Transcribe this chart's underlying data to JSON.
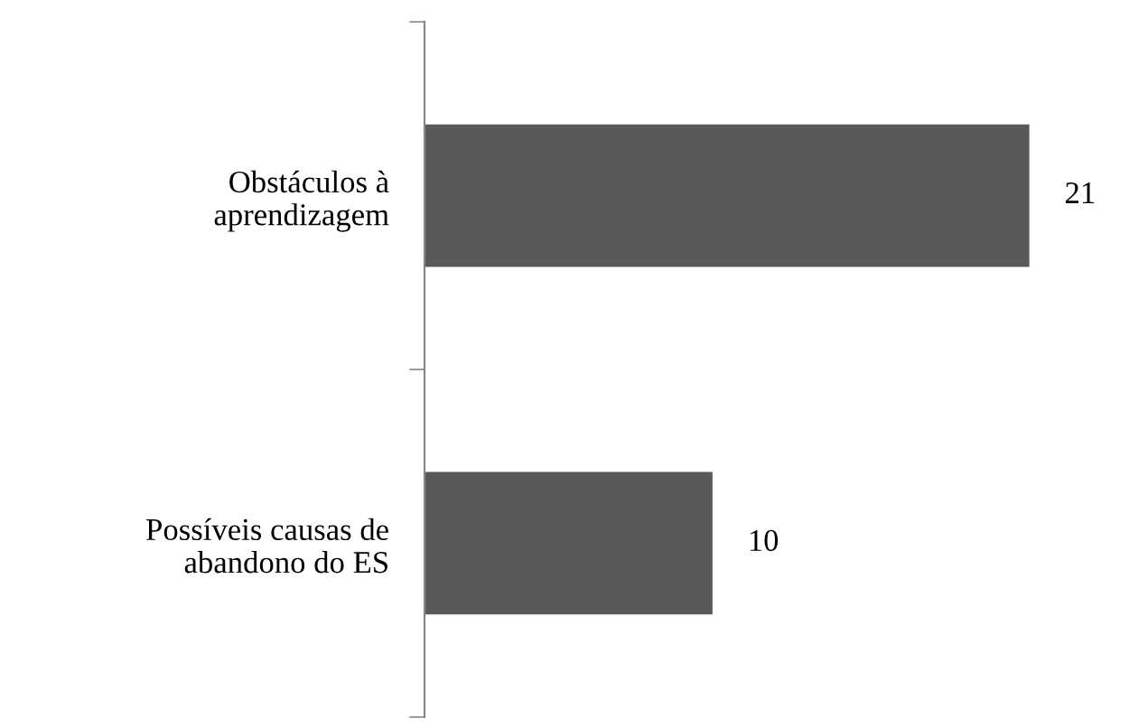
{
  "chart_data": {
    "type": "bar",
    "orientation": "horizontal",
    "categories": [
      "Obstáculos à\naprendizagem",
      "Possíveis causas de\nabandono do ES"
    ],
    "values": [
      21,
      10
    ],
    "color": "#595959",
    "data_labels": true,
    "tick_labels": "y",
    "grid": false,
    "legend": false
  }
}
